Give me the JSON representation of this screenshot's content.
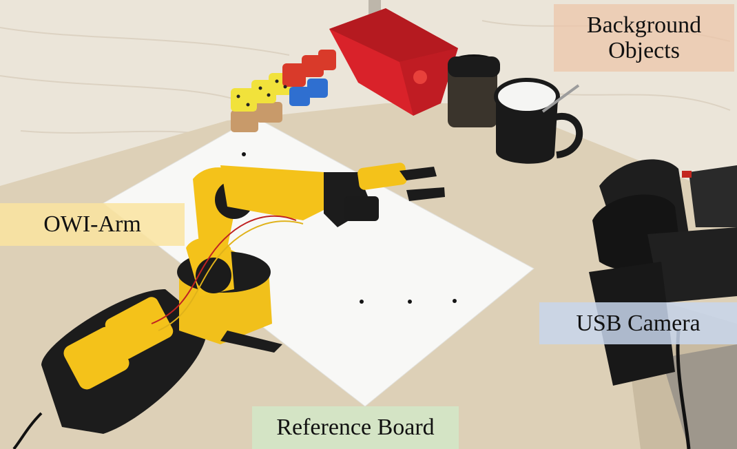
{
  "labels": {
    "owi_arm": "OWI-Arm",
    "background_objects_line1": "Background",
    "background_objects_line2": "Objects",
    "usb_camera": "USB Camera",
    "reference_board": "Reference Board"
  },
  "colors": {
    "wall": "#ece6da",
    "table": "#ddd0b8",
    "paper": "#f7f7f5",
    "arm_yellow": "#f4c21a",
    "arm_black": "#1c1c1c",
    "bin_red": "#d8222a",
    "camera_black": "#1a1a1a"
  }
}
